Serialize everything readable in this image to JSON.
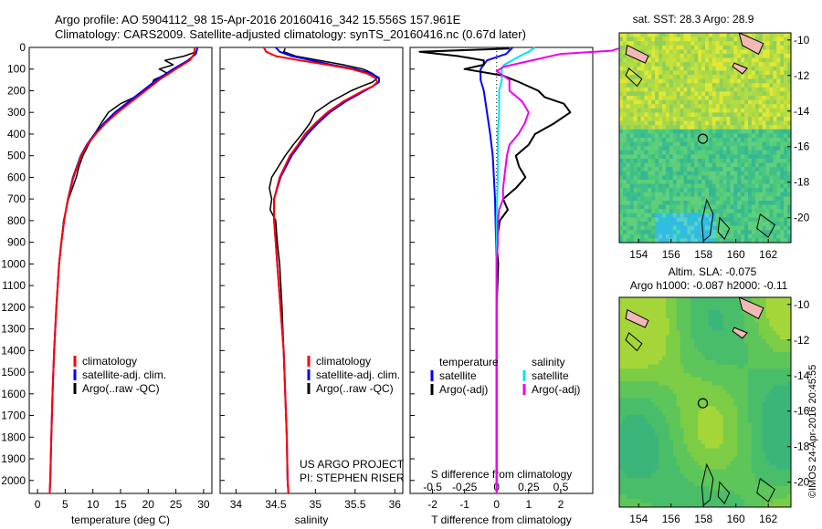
{
  "header": {
    "line1": "Argo profile: AO 5904112_98 15-Apr-2016 20160416_342 15.556S 157.961E",
    "line2": "Climatology: CARS2009. Satellite-adjusted climatology: synTS_20160416.nc (0.67d later)"
  },
  "colors": {
    "climatology": "#ff0000",
    "satellite": "#0000ff",
    "argo": "#000000",
    "salinity_satellite": "#00e5ee",
    "salinity_argo": "#ee00ee"
  },
  "chart_data": [
    {
      "type": "line",
      "id": "temperature",
      "xlabel": "temperature (deg C)",
      "ylabel": "",
      "xlim": [
        -1.5,
        31.5
      ],
      "ylim": [
        2060,
        0
      ],
      "xticks": [
        "0",
        "5",
        "10",
        "15",
        "20",
        "25",
        "30"
      ],
      "xtick_values": [
        0,
        5,
        10,
        15,
        20,
        25,
        30
      ],
      "yticks": [
        "0",
        "100",
        "200",
        "300",
        "400",
        "500",
        "600",
        "700",
        "800",
        "900",
        "1000",
        "1100",
        "1200",
        "1300",
        "1400",
        "1500",
        "1600",
        "1700",
        "1800",
        "1900",
        "2000"
      ],
      "legend": [
        "climatology",
        "satellite-adj. clim.",
        "Argo(..raw -QC)"
      ],
      "legend_position": "lower-center",
      "series": [
        {
          "name": "climatology",
          "color": "#ff0000",
          "depth": [
            0,
            30,
            60,
            100,
            150,
            200,
            250,
            300,
            350,
            400,
            450,
            500,
            600,
            700,
            800,
            900,
            1000,
            1200,
            1400,
            1600,
            1800,
            2000,
            2060
          ],
          "values": [
            28.4,
            28.3,
            27.5,
            25.0,
            22.0,
            19.5,
            17.0,
            14.5,
            12.3,
            10.5,
            9.0,
            7.9,
            6.5,
            5.5,
            4.8,
            4.3,
            3.9,
            3.4,
            3.0,
            2.7,
            2.5,
            2.3,
            2.2
          ]
        },
        {
          "name": "satellite-adj. clim.",
          "color": "#0000ff",
          "depth": [
            0,
            30,
            60,
            100,
            150,
            200,
            250,
            300,
            350,
            400,
            450,
            500,
            600,
            700,
            800,
            900,
            1000,
            1200,
            1400,
            1600,
            1800,
            2000,
            2060
          ],
          "values": [
            28.9,
            28.6,
            27.2,
            24.5,
            21.5,
            19.0,
            16.5,
            14.0,
            12.0,
            10.3,
            8.9,
            7.8,
            6.4,
            5.5,
            4.8,
            4.3,
            3.9,
            3.4,
            3.0,
            2.7,
            2.5,
            2.3,
            2.2
          ]
        },
        {
          "name": "Argo(..raw -QC)",
          "color": "#000000",
          "depth": [
            5,
            20,
            40,
            60,
            80,
            100,
            120,
            150,
            180,
            200,
            230,
            260,
            300,
            350,
            400,
            450,
            500,
            550,
            600,
            700,
            800,
            900,
            1000,
            1200,
            1400,
            1600,
            1800,
            2000
          ],
          "values": [
            28.9,
            28.7,
            26.5,
            23.0,
            24.5,
            22.0,
            23.5,
            21.0,
            20.5,
            19.3,
            17.5,
            15.0,
            12.8,
            11.5,
            10.3,
            9.2,
            8.2,
            7.5,
            7.0,
            5.6,
            4.7,
            4.3,
            3.9,
            3.4,
            3.0,
            2.7,
            2.5,
            2.3
          ]
        }
      ]
    },
    {
      "type": "line",
      "id": "salinity",
      "xlabel": "salinity",
      "ylabel": "",
      "xlim": [
        33.8,
        36.1
      ],
      "ylim": [
        2060,
        0
      ],
      "xticks": [
        "34",
        "34.5",
        "35",
        "35.5",
        "36"
      ],
      "xtick_values": [
        34,
        34.5,
        35,
        35.5,
        36
      ],
      "legend": [
        "climatology",
        "satellite-adj. clim.",
        "Argo(..raw -QC)"
      ],
      "legend_position": "lower-center",
      "annotation": [
        "US ARGO PROJECT",
        "PI: STEPHEN RISER"
      ],
      "series": [
        {
          "name": "climatology",
          "color": "#ff0000",
          "depth": [
            0,
            20,
            40,
            60,
            80,
            100,
            120,
            140,
            160,
            180,
            200,
            250,
            300,
            350,
            400,
            450,
            500,
            600,
            700,
            800,
            900,
            1000,
            1200,
            1400,
            1600,
            1800,
            2000,
            2060
          ],
          "values": [
            34.35,
            34.38,
            34.5,
            34.8,
            35.15,
            35.45,
            35.65,
            35.75,
            35.78,
            35.72,
            35.6,
            35.35,
            35.15,
            35.0,
            34.87,
            34.78,
            34.68,
            34.55,
            34.48,
            34.48,
            34.5,
            34.52,
            34.56,
            34.6,
            34.62,
            34.64,
            34.65,
            34.66
          ]
        },
        {
          "name": "satellite-adj. clim.",
          "color": "#0000ff",
          "depth": [
            0,
            20,
            40,
            60,
            80,
            100,
            120,
            140,
            160,
            180,
            200,
            250,
            300,
            350,
            400,
            450,
            500,
            600,
            700,
            800,
            900,
            1000,
            1200,
            1400,
            1600,
            1800,
            2000,
            2060
          ],
          "values": [
            34.5,
            34.55,
            34.7,
            34.95,
            35.2,
            35.5,
            35.7,
            35.8,
            35.8,
            35.72,
            35.62,
            35.38,
            35.18,
            35.03,
            34.9,
            34.8,
            34.7,
            34.56,
            34.48,
            34.48,
            34.5,
            34.52,
            34.56,
            34.6,
            34.62,
            34.64,
            34.65,
            34.66
          ]
        },
        {
          "name": "Argo(..raw -QC)",
          "color": "#000000",
          "depth": [
            5,
            20,
            40,
            60,
            80,
            100,
            120,
            140,
            160,
            180,
            200,
            250,
            300,
            350,
            400,
            450,
            500,
            600,
            650,
            700,
            750,
            800,
            900,
            1000,
            1200,
            1400,
            1600,
            1800,
            2000
          ],
          "values": [
            34.62,
            34.6,
            34.75,
            35.05,
            35.35,
            35.6,
            35.72,
            35.78,
            35.72,
            35.58,
            35.45,
            35.2,
            35.0,
            34.93,
            34.83,
            34.72,
            34.62,
            34.45,
            34.42,
            34.45,
            34.43,
            34.5,
            34.52,
            34.55,
            34.58,
            34.6,
            34.62,
            34.64,
            34.65
          ]
        }
      ]
    },
    {
      "type": "line",
      "id": "difference",
      "xlabel": "T difference from climatology",
      "top_label": "S difference from climatology",
      "ylabel": "",
      "xlim": [
        -2.7,
        3.0
      ],
      "ylim": [
        2060,
        0
      ],
      "xticks": [
        "-2",
        "-1",
        "0",
        "1",
        "2"
      ],
      "xtick_values": [
        -2,
        -1,
        0,
        1,
        2
      ],
      "sticks": [
        "-0.5",
        "-0.25",
        "0",
        "0.25",
        "0.5"
      ],
      "stick_values": [
        -0.5,
        -0.25,
        0,
        0.25,
        0.5
      ],
      "legend_temperature_title": "temperature",
      "legend_salinity_title": "salinity",
      "legend": [
        "satellite",
        "Argo(-adj)",
        "satellite",
        "Argo(-adj)"
      ],
      "series": [
        {
          "name": "temperature satellite",
          "color": "#0000ff",
          "quantity": "T",
          "depth": [
            0,
            30,
            60,
            100,
            150,
            200,
            300,
            400,
            500,
            700,
            1000,
            2060
          ],
          "values": [
            0.5,
            0.3,
            -0.3,
            -0.5,
            -0.5,
            -0.4,
            -0.3,
            -0.2,
            -0.12,
            -0.05,
            0.0,
            0.0
          ]
        },
        {
          "name": "temperature Argo(-adj)",
          "color": "#000000",
          "quantity": "T",
          "depth": [
            5,
            20,
            40,
            60,
            80,
            100,
            130,
            160,
            200,
            230,
            260,
            300,
            350,
            400,
            450,
            500,
            550,
            600,
            650,
            700,
            750,
            800,
            900,
            1000,
            1200,
            1400,
            1600,
            1800,
            2000
          ],
          "values": [
            0.4,
            -2.4,
            -1.2,
            -0.4,
            -0.4,
            -1.0,
            0.2,
            0.7,
            1.3,
            1.5,
            2.1,
            2.3,
            1.8,
            1.2,
            1.0,
            0.6,
            0.7,
            0.9,
            0.6,
            0.2,
            0.35,
            0.1,
            0.0,
            0.05,
            0.0,
            0.0,
            0.0,
            0.0,
            0.0
          ]
        },
        {
          "name": "salinity satellite",
          "color": "#00e5ee",
          "quantity": "S",
          "depth": [
            0,
            20,
            40,
            60,
            80,
            100,
            150,
            200,
            250,
            300,
            400,
            500,
            600,
            800,
            1000,
            2060
          ],
          "values": [
            0.3,
            0.25,
            0.18,
            0.12,
            0.06,
            0.04,
            0.04,
            0.02,
            0.02,
            0.02,
            0.01,
            0.01,
            0.01,
            0.0,
            0.0,
            0.0
          ]
        },
        {
          "name": "salinity Argo(-adj)",
          "color": "#ee00ee",
          "quantity": "S",
          "depth": [
            5,
            15,
            30,
            50,
            70,
            90,
            110,
            130,
            150,
            200,
            250,
            300,
            350,
            400,
            450,
            500,
            550,
            600,
            650,
            700,
            750,
            800,
            850,
            900,
            1000,
            1200,
            1500,
            2060
          ],
          "values": [
            0.95,
            0.9,
            0.5,
            0.35,
            0.2,
            0.05,
            0.0,
            0.05,
            0.1,
            0.1,
            0.2,
            0.25,
            0.22,
            0.17,
            0.1,
            0.08,
            0.07,
            0.06,
            0.05,
            0.05,
            0.02,
            0.01,
            0.01,
            0.01,
            0.0,
            0.0,
            0.0,
            0.0
          ]
        }
      ]
    },
    {
      "type": "heatmap",
      "id": "sst-map",
      "title": "sat. SST: 28.3 Argo: 28.9",
      "xlim": [
        152.8,
        163.4
      ],
      "ylim": [
        -21.4,
        -9.6
      ],
      "xticks": [
        "154",
        "156",
        "158",
        "160",
        "162"
      ],
      "xtick_values": [
        154,
        156,
        158,
        160,
        162
      ],
      "yticks": [
        "-10",
        "-12",
        "-14",
        "-16",
        "-18",
        "-20"
      ],
      "ytick_values": [
        -10,
        -12,
        -14,
        -16,
        -18,
        -20
      ],
      "argo_position": [
        157.961,
        -15.556
      ]
    },
    {
      "type": "heatmap",
      "id": "sla-map",
      "title": "Altim. SLA: -0.075",
      "subtitle": "Argo h1000: -0.087 h2000: -0.11",
      "xlim": [
        152.8,
        163.4
      ],
      "ylim": [
        -21.4,
        -9.6
      ],
      "xticks": [
        "154",
        "156",
        "158",
        "160",
        "162"
      ],
      "xtick_values": [
        154,
        156,
        158,
        160,
        162
      ],
      "yticks": [
        "-10",
        "-12",
        "-14",
        "-16",
        "-18",
        "-20"
      ],
      "ytick_values": [
        -10,
        -12,
        -14,
        -16,
        -18,
        -20
      ],
      "argo_position": [
        157.961,
        -15.556
      ]
    }
  ],
  "footer": {
    "credit": "©IMOS 24-Apr-2016 20:45:55"
  }
}
